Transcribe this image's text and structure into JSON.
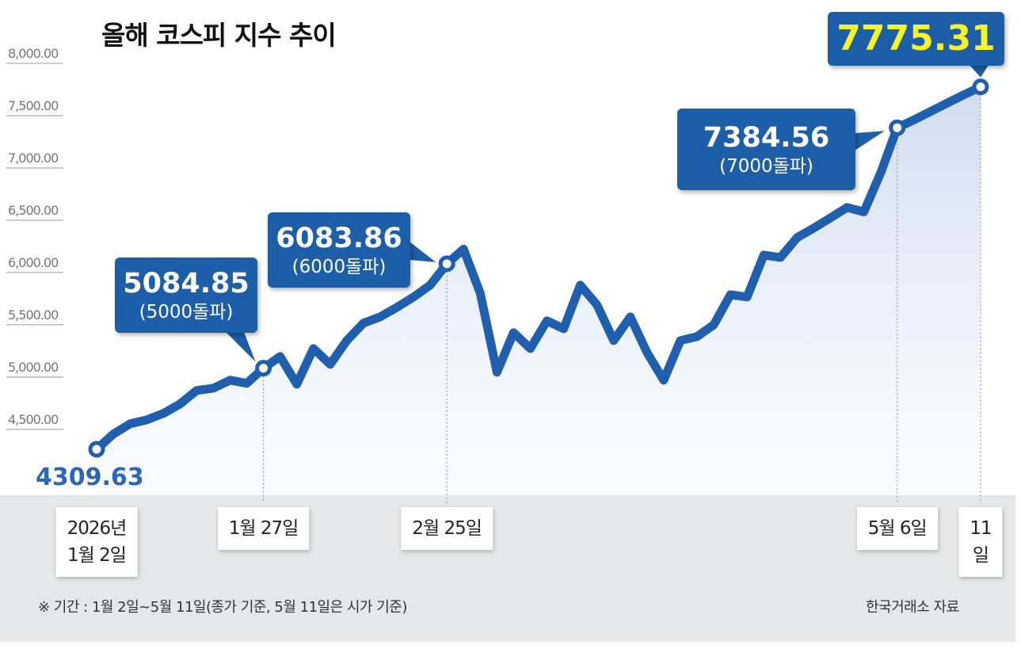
{
  "chart_data": {
    "type": "line",
    "title": "올해 코스피 지수 추이",
    "categories": [
      "2026년\n1월 2일",
      null,
      null,
      null,
      null,
      null,
      null,
      null,
      null,
      null,
      "1월 27일",
      null,
      null,
      null,
      null,
      null,
      null,
      null,
      null,
      null,
      null,
      "2월 25일",
      null,
      null,
      null,
      null,
      null,
      null,
      null,
      null,
      null,
      null,
      null,
      null,
      null,
      null,
      null,
      null,
      null,
      null,
      null,
      null,
      null,
      null,
      null,
      null,
      null,
      null,
      "5월 6일",
      null,
      null,
      null,
      null,
      "11일"
    ],
    "values": [
      4309.63,
      4455,
      4553,
      4591,
      4652,
      4743,
      4872,
      4894,
      4970,
      4940,
      5084.85,
      5197,
      4932,
      5273,
      5122,
      5349,
      5516,
      5576,
      5667,
      5766,
      5879,
      6083.86,
      6224,
      5803,
      5046,
      5425,
      5273,
      5538,
      5462,
      5879,
      5690,
      5349,
      5576,
      5235,
      4970,
      5349,
      5387,
      5500,
      5788,
      5766,
      6167,
      6144,
      6334,
      6425,
      6523,
      6622,
      6580,
      6950,
      7384.56,
      7460,
      7540,
      7620,
      7700,
      7775.31
    ],
    "value_notes": [
      null,
      null,
      null,
      null,
      null,
      null,
      null,
      null,
      null,
      null,
      "(5000돌파)",
      null,
      null,
      null,
      null,
      null,
      null,
      null,
      null,
      null,
      null,
      "(6000돌파)",
      null,
      null,
      null,
      null,
      null,
      null,
      null,
      null,
      null,
      null,
      null,
      null,
      null,
      null,
      null,
      null,
      null,
      null,
      null,
      null,
      null,
      null,
      null,
      null,
      null,
      null,
      "(7000돌파)",
      null,
      null,
      null,
      null,
      null
    ],
    "color": "#1f5fae",
    "ylim": [
      3870,
      8000
    ],
    "yticks": [
      {
        "value": 4500,
        "label": "4,500.00"
      },
      {
        "value": 5000,
        "label": "5,000.00"
      },
      {
        "value": 5500,
        "label": "5,500.00"
      },
      {
        "value": 6000,
        "label": "6,000.00"
      },
      {
        "value": 6500,
        "label": "6,500.00"
      },
      {
        "value": 7000,
        "label": "7,000.00"
      },
      {
        "value": 7500,
        "label": "7,500.00"
      },
      {
        "value": 8000,
        "label": "8,000.00"
      }
    ],
    "footnote": "※ 기간 : 1월 2일~5월 11일(종가 기준, 5월 11일은 시가 기준)",
    "source": "한국거래소 자료"
  }
}
